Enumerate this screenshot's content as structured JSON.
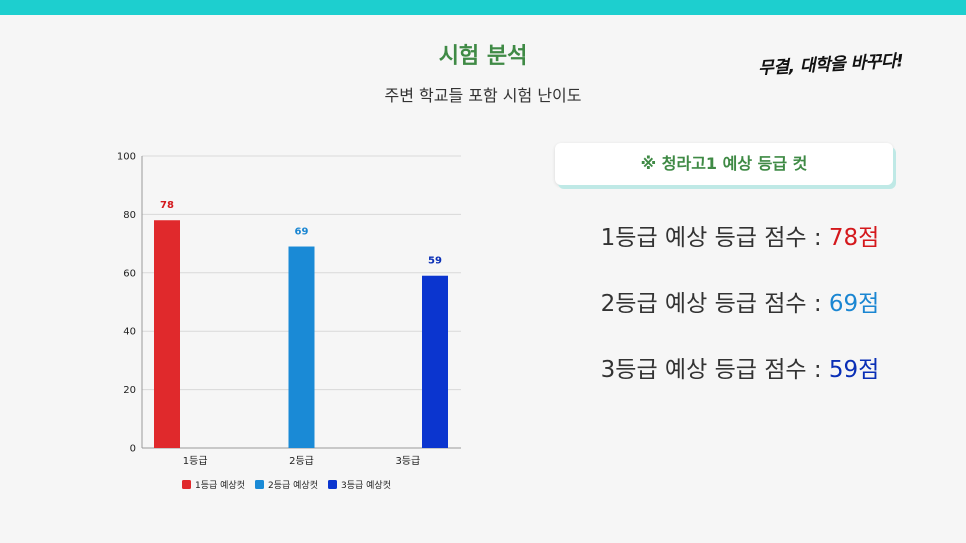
{
  "title": "시험 분석",
  "subtitle": "주변 학교들 포함 시험 난이도",
  "brand": "무결, 대학을 바꾸다!",
  "cut_box": {
    "label": "※ 청라고1 예상 등급 컷"
  },
  "scores": [
    {
      "label": "1등급 예상 등급 점수 : ",
      "value": "78점",
      "color": "#d4181c"
    },
    {
      "label": "2등급 예상 등급 점수 : ",
      "value": "69점",
      "color": "#1a86d2"
    },
    {
      "label": "3등급 예상 등급 점수 : ",
      "value": "59점",
      "color": "#0a2fb6"
    }
  ],
  "colors": {
    "accent": "#1dcfcf",
    "title_green": "#3f8a45"
  },
  "chart_data": {
    "type": "bar",
    "categories": [
      "1등급",
      "2등급",
      "3등급"
    ],
    "series": [
      {
        "name": "1등급 예상컷",
        "values": [
          78,
          null,
          null
        ],
        "color": "#e0292c",
        "label_color": "#d4181c"
      },
      {
        "name": "2등급 예상컷",
        "values": [
          null,
          69,
          null
        ],
        "color": "#1a8ad6",
        "label_color": "#1a86d2"
      },
      {
        "name": "3등급 예상컷",
        "values": [
          null,
          null,
          59
        ],
        "color": "#0b35cf",
        "label_color": "#0a2fb6"
      }
    ],
    "ylim": [
      0,
      100
    ],
    "yticks": [
      0,
      20,
      40,
      60,
      80,
      100
    ],
    "grid": true,
    "legend_position": "bottom"
  }
}
